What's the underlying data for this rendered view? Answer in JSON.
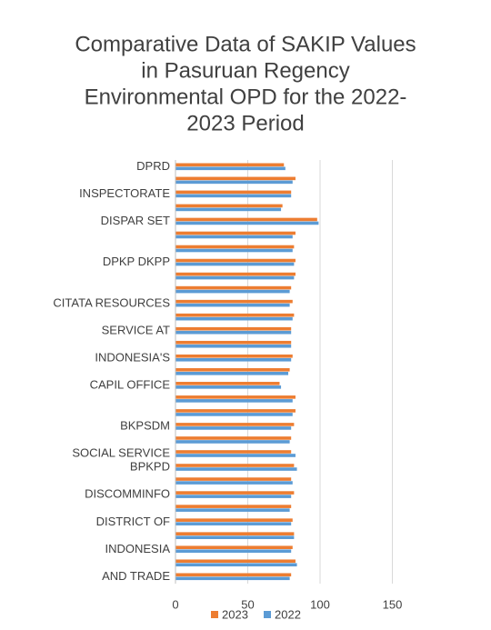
{
  "chart_data": {
    "type": "bar",
    "orientation": "horizontal",
    "title": [
      "Comparative Data of SAKIP Values",
      "in Pasuruan Regency",
      "Environmental OPD for the 2022-",
      "2023 Period"
    ],
    "categories": [
      "DPRD",
      null,
      "INSPECTORATE",
      null,
      "DISPAR SET",
      null,
      null,
      "DPKP DKPP",
      null,
      null,
      "CITATA RESOURCES",
      null,
      "SERVICE AT",
      null,
      "INDONESIA'S",
      null,
      "CAPIL OFFICE",
      null,
      null,
      "BKPSDM",
      null,
      "SOCIAL SERVICE",
      "BPKPD",
      null,
      "DISCOMMINFO",
      null,
      "DISTRICT OF",
      null,
      "INDONESIA",
      null,
      "AND TRADE"
    ],
    "series": [
      {
        "name": "2023",
        "color": "#ed7d31",
        "values": [
          75,
          83,
          80,
          74,
          98,
          83,
          82,
          83,
          83,
          80,
          81,
          82,
          80,
          80,
          81,
          79,
          72,
          83,
          83,
          82,
          80,
          80,
          82,
          80,
          82,
          80,
          81,
          82,
          81,
          83,
          80
        ]
      },
      {
        "name": "2022",
        "color": "#5b9bd5",
        "values": [
          76,
          81,
          80,
          73,
          99,
          81,
          81,
          82,
          82,
          79,
          79,
          81,
          80,
          80,
          80,
          78,
          73,
          81,
          81,
          80,
          79,
          83,
          84,
          81,
          80,
          79,
          80,
          82,
          80,
          84,
          79
        ]
      }
    ],
    "xlim": [
      0,
      200
    ],
    "xticks": [
      0,
      50,
      100,
      150
    ],
    "grid": true,
    "legend": "bottom"
  }
}
